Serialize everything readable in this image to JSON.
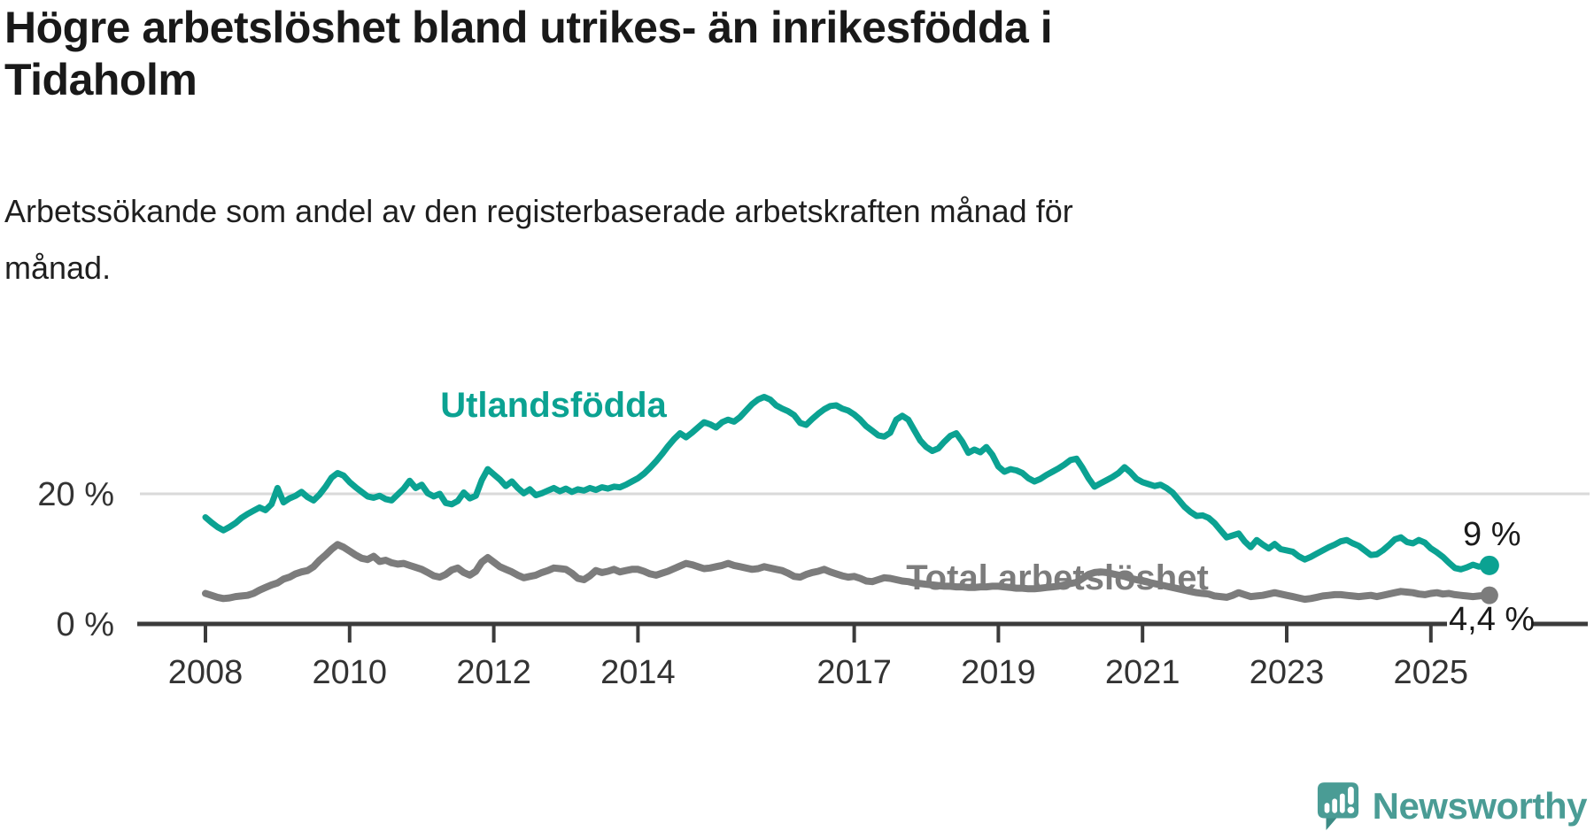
{
  "title": {
    "line1": "Högre arbetslöshet bland utrikes- än inrikesfödda i",
    "line2": "Tidaholm"
  },
  "subtitle": {
    "line1": "Arbetssökande som andel av den registerbaserade arbetskraften månad för",
    "line2": "månad."
  },
  "chart": {
    "colors": {
      "teal_series": "#0ba292",
      "gray_series": "#7c7c7c",
      "axis_line": "#3b3b3b",
      "axis_text": "#333333",
      "gridline": "#dadada",
      "end_label_text": "#1a1a1a"
    },
    "y_axis": {
      "labels": [
        {
          "value": 20,
          "text": "20 %"
        },
        {
          "value": 0,
          "text": "0 %"
        }
      ]
    },
    "x_axis": {
      "ticks": [
        2008,
        2010,
        2012,
        2014,
        2017,
        2019,
        2021,
        2023,
        2025
      ]
    }
  },
  "chart_data": {
    "type": "line",
    "title": "Högre arbetslöshet bland utrikes- än inrikesfödda i Tidaholm",
    "subtitle": "Arbetssökande som andel av den registerbaserade arbetskraften månad för månad.",
    "unit": "%",
    "frequency": "monthly",
    "x_range": [
      2008.0,
      2025.75
    ],
    "ylim": [
      0,
      38
    ],
    "grid": "single line at 20 %",
    "legend_position": "inline labels on lines",
    "series": [
      {
        "name": "Utlandsfödda",
        "color": "#0ba292",
        "end_label": "9 %",
        "end_value": 9.0,
        "start": "2008-01",
        "values_by_year": [
          {
            "year": 2008,
            "values": [
              16.4,
              15.6,
              14.9,
              14.4,
              14.9,
              15.5,
              16.3,
              16.9,
              17.4,
              17.9,
              17.5,
              18.4
            ]
          },
          {
            "year": 2009,
            "values": [
              20.9,
              18.7,
              19.3,
              19.7,
              20.3,
              19.5,
              19.0,
              19.9,
              21.1,
              22.5,
              23.2,
              22.8
            ]
          },
          {
            "year": 2010,
            "values": [
              21.8,
              21.0,
              20.3,
              19.6,
              19.4,
              19.7,
              19.2,
              19.0,
              19.9,
              20.8,
              22.0,
              20.9
            ]
          },
          {
            "year": 2011,
            "values": [
              21.4,
              20.1,
              19.6,
              20.0,
              18.6,
              18.4,
              18.9,
              20.2,
              19.3,
              19.7,
              22.1,
              23.8
            ]
          },
          {
            "year": 2012,
            "values": [
              23.0,
              22.2,
              21.2,
              21.9,
              20.9,
              20.1,
              20.7,
              19.8,
              20.1,
              20.5,
              20.9,
              20.4
            ]
          },
          {
            "year": 2013,
            "values": [
              20.8,
              20.3,
              20.7,
              20.5,
              20.9,
              20.6,
              21.0,
              20.8,
              21.1,
              21.0,
              21.4,
              21.9
            ]
          },
          {
            "year": 2014,
            "values": [
              22.4,
              23.1,
              24.0,
              25.0,
              26.1,
              27.3,
              28.4,
              29.3,
              28.7,
              29.4,
              30.2,
              31.0
            ]
          },
          {
            "year": 2015,
            "values": [
              30.7,
              30.2,
              31.0,
              31.4,
              31.1,
              31.8,
              32.8,
              33.8,
              34.5,
              34.9,
              34.5,
              33.6
            ]
          },
          {
            "year": 2016,
            "values": [
              33.1,
              32.7,
              32.1,
              30.9,
              30.6,
              31.5,
              32.3,
              33.0,
              33.5,
              33.6,
              33.1,
              32.8
            ]
          },
          {
            "year": 2017,
            "values": [
              32.2,
              31.4,
              30.4,
              29.7,
              29.0,
              28.8,
              29.4,
              31.4,
              32.0,
              31.4,
              29.8,
              28.2
            ]
          },
          {
            "year": 2018,
            "values": [
              27.2,
              26.6,
              27.0,
              28.0,
              28.9,
              29.3,
              28.0,
              26.3,
              26.8,
              26.4,
              27.2,
              26.0
            ]
          },
          {
            "year": 2019,
            "values": [
              24.2,
              23.4,
              23.8,
              23.6,
              23.2,
              22.4,
              21.9,
              22.3,
              22.9,
              23.4,
              23.9,
              24.5
            ]
          },
          {
            "year": 2020,
            "values": [
              25.2,
              25.4,
              24.0,
              22.4,
              21.1,
              21.6,
              22.1,
              22.6,
              23.2,
              24.1,
              23.3,
              22.3
            ]
          },
          {
            "year": 2021,
            "values": [
              21.8,
              21.5,
              21.2,
              21.4,
              20.9,
              20.2,
              19.1,
              18.0,
              17.2,
              16.6,
              16.7,
              16.3
            ]
          },
          {
            "year": 2022,
            "values": [
              15.5,
              14.4,
              13.3,
              13.6,
              13.9,
              12.7,
              11.8,
              12.9,
              12.2,
              11.6,
              12.3,
              11.5
            ]
          },
          {
            "year": 2023,
            "values": [
              11.3,
              11.1,
              10.4,
              9.9,
              10.3,
              10.8,
              11.3,
              11.8,
              12.2,
              12.7,
              12.9,
              12.4
            ]
          },
          {
            "year": 2024,
            "values": [
              12.0,
              11.3,
              10.6,
              10.7,
              11.3,
              12.1,
              13.0,
              13.3,
              12.6,
              12.4,
              12.9,
              12.5
            ]
          },
          {
            "year": 2025,
            "values": [
              11.6,
              11.0,
              10.3,
              9.4,
              8.6,
              8.4,
              8.7,
              9.1,
              8.8,
              9.0
            ]
          }
        ]
      },
      {
        "name": "Total arbetslöshet",
        "color": "#7c7c7c",
        "end_label": "4,4 %",
        "end_value": 4.4,
        "start": "2008-01",
        "values_by_year": [
          {
            "year": 2008,
            "values": [
              4.7,
              4.4,
              4.1,
              3.9,
              4.0,
              4.2,
              4.3,
              4.4,
              4.7,
              5.2,
              5.6,
              6.0
            ]
          },
          {
            "year": 2009,
            "values": [
              6.3,
              6.9,
              7.2,
              7.7,
              8.0,
              8.2,
              8.8,
              9.8,
              10.6,
              11.5,
              12.2,
              11.8
            ]
          },
          {
            "year": 2010,
            "values": [
              11.2,
              10.6,
              10.1,
              9.9,
              10.4,
              9.6,
              9.8,
              9.4,
              9.2,
              9.3,
              9.0,
              8.7
            ]
          },
          {
            "year": 2011,
            "values": [
              8.4,
              7.9,
              7.4,
              7.2,
              7.6,
              8.3,
              8.6,
              7.9,
              7.5,
              8.1,
              9.5,
              10.2
            ]
          },
          {
            "year": 2012,
            "values": [
              9.5,
              8.8,
              8.4,
              8.0,
              7.5,
              7.1,
              7.3,
              7.5,
              7.9,
              8.2,
              8.6,
              8.5
            ]
          },
          {
            "year": 2013,
            "values": [
              8.4,
              7.8,
              7.0,
              6.8,
              7.4,
              8.2,
              7.9,
              8.1,
              8.4,
              8.0,
              8.2,
              8.4
            ]
          },
          {
            "year": 2014,
            "values": [
              8.4,
              8.1,
              7.7,
              7.5,
              7.8,
              8.1,
              8.5,
              8.9,
              9.3,
              9.1,
              8.8,
              8.5
            ]
          },
          {
            "year": 2015,
            "values": [
              8.6,
              8.8,
              9.0,
              9.3,
              9.0,
              8.8,
              8.6,
              8.4,
              8.5,
              8.8,
              8.6,
              8.4
            ]
          },
          {
            "year": 2016,
            "values": [
              8.2,
              7.8,
              7.3,
              7.2,
              7.6,
              7.9,
              8.1,
              8.4,
              8.0,
              7.7,
              7.4,
              7.2
            ]
          },
          {
            "year": 2017,
            "values": [
              7.3,
              7.0,
              6.6,
              6.5,
              6.8,
              7.1,
              7.0,
              6.8,
              6.6,
              6.5,
              6.3,
              6.2
            ]
          },
          {
            "year": 2018,
            "values": [
              6.1,
              6.0,
              5.9,
              5.8,
              5.8,
              5.7,
              5.7,
              5.6,
              5.6,
              5.7,
              5.7,
              5.8
            ]
          },
          {
            "year": 2019,
            "values": [
              5.8,
              5.7,
              5.6,
              5.5,
              5.5,
              5.4,
              5.4,
              5.5,
              5.6,
              5.7,
              5.8,
              6.0
            ]
          },
          {
            "year": 2020,
            "values": [
              6.2,
              6.4,
              7.0,
              7.6,
              7.9,
              8.0,
              7.9,
              7.7,
              7.5,
              7.3,
              7.0,
              6.8
            ]
          },
          {
            "year": 2021,
            "values": [
              6.6,
              6.4,
              6.2,
              6.0,
              5.8,
              5.6,
              5.4,
              5.2,
              5.0,
              4.8,
              4.7,
              4.6
            ]
          },
          {
            "year": 2022,
            "values": [
              4.3,
              4.2,
              4.1,
              4.4,
              4.8,
              4.5,
              4.2,
              4.3,
              4.4,
              4.6,
              4.8,
              4.6
            ]
          },
          {
            "year": 2023,
            "values": [
              4.4,
              4.2,
              4.0,
              3.8,
              3.9,
              4.1,
              4.3,
              4.4,
              4.5,
              4.5,
              4.4,
              4.3
            ]
          },
          {
            "year": 2024,
            "values": [
              4.2,
              4.3,
              4.4,
              4.2,
              4.4,
              4.6,
              4.8,
              5.0,
              4.9,
              4.8,
              4.6,
              4.5
            ]
          },
          {
            "year": 2025,
            "values": [
              4.7,
              4.8,
              4.6,
              4.7,
              4.5,
              4.4,
              4.3,
              4.2,
              4.3,
              4.4
            ]
          }
        ]
      }
    ]
  },
  "logo": {
    "text": "Newsworthy",
    "color": "#4a9c95",
    "icon": "speech-bubble-bar-chart-exclamation"
  }
}
